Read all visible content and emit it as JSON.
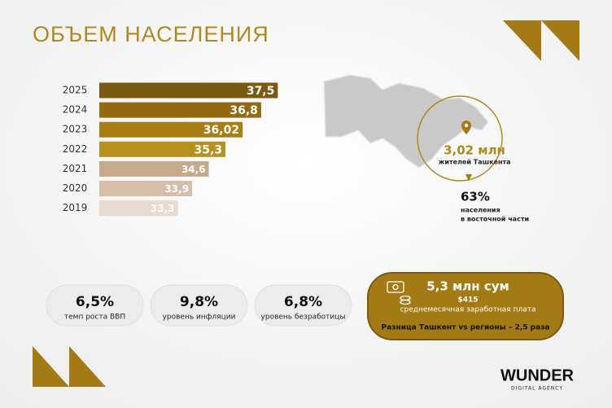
{
  "chart_data": {
    "type": "bar",
    "orientation": "horizontal",
    "title": "ОБЪЕМ НАСЕЛЕНИЯ",
    "categories": [
      "2025",
      "2024",
      "2023",
      "2022",
      "2021",
      "2020",
      "2019"
    ],
    "values": [
      37.5,
      36.8,
      36.02,
      35.3,
      34.6,
      33.9,
      33.3
    ],
    "value_labels": [
      "37,5",
      "36,8",
      "36,02",
      "35,3",
      "34,6",
      "33,9",
      "33,3"
    ],
    "colors": [
      "#7a5a10",
      "#936a12",
      "#a97e14",
      "#b8901e",
      "#c6a98b",
      "#d5bfa9",
      "#e7dbcf"
    ],
    "xlim": [
      30,
      38
    ]
  },
  "map": {
    "tashkent_value": "3,02 млн",
    "tashkent_label": "жителей Ташкента",
    "east_value": "63%",
    "east_label": [
      "населения",
      "в восточной части"
    ]
  },
  "stats": [
    {
      "value": "6,5%",
      "label": "темп роста ВВП"
    },
    {
      "value": "9,8%",
      "label": "уровень инфляции"
    },
    {
      "value": "6,8%",
      "label": "уровень безработицы"
    }
  ],
  "salary": {
    "value": "5,3 млн сум",
    "usd": "$415",
    "label": "среднемесячная заработная плата",
    "note": "Разница Ташкент vs регионы – 2,5 раза"
  },
  "logo": {
    "name": "WUNDER",
    "tagline": "DIGITAL AGENCY"
  }
}
